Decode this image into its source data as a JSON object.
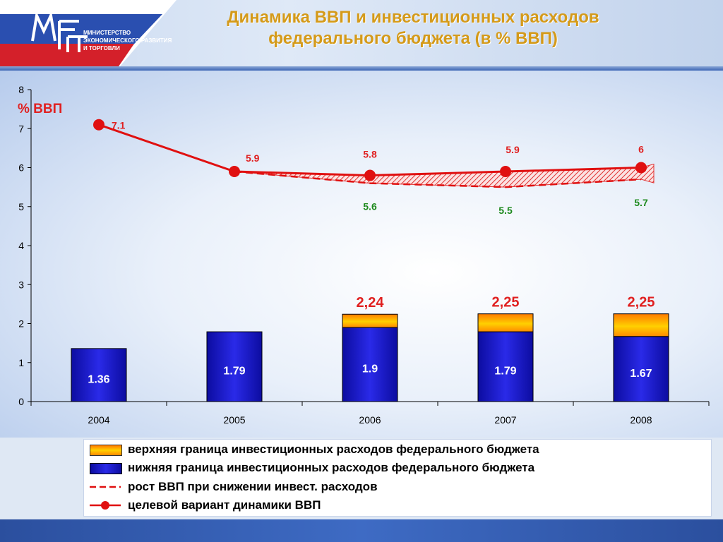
{
  "header": {
    "logo_lines": [
      "Министерство",
      "экономического развития",
      "и торговли"
    ],
    "title_line1": "Динамика ВВП и инвестиционных расходов",
    "title_line2": "федерального бюджета  (в % ВВП)"
  },
  "colors": {
    "title": "#d49a1a",
    "bar_blue": "#1a1ac8",
    "bar_orange": "#f5a000",
    "line_red": "#e01010",
    "band_fill": "#e84040",
    "label_red": "#e02020",
    "label_green": "#1e8a1e"
  },
  "chart_data": {
    "type": "bar",
    "ylabel": "% ВВП",
    "ylim": [
      0,
      8
    ],
    "yticks": [
      "0",
      "1",
      "2",
      "3",
      "4",
      "5",
      "6",
      "7",
      "8"
    ],
    "categories": [
      "2004",
      "2005",
      "2006",
      "2007",
      "2008"
    ],
    "series": [
      {
        "name": "нижняя граница  инвестиционных расходов  федерального бюджета",
        "kind": "bar",
        "values": [
          1.36,
          1.79,
          1.9,
          1.79,
          1.67
        ],
        "labels": [
          "1.36",
          "1.79",
          "1.9",
          "1.79",
          "1.67"
        ]
      },
      {
        "name": "верхняя граница инвестиционных расходов федерального бюджета",
        "kind": "bar-top",
        "values": [
          null,
          null,
          2.24,
          2.25,
          2.25
        ],
        "labels": [
          "",
          "",
          "2,24",
          "2,25",
          "2,25"
        ]
      },
      {
        "name": "целевой вариант динамики   ВВП",
        "kind": "line",
        "values": [
          7.1,
          5.9,
          5.8,
          5.9,
          6.0
        ],
        "labels": [
          "7.1",
          "5.9",
          "5.8",
          "5.9",
          "6"
        ]
      },
      {
        "name": "рост  ВВП при снижении инвест. расходов",
        "kind": "dashed-line",
        "values": [
          null,
          5.9,
          5.6,
          5.5,
          5.7
        ],
        "labels": [
          "",
          "",
          "5.6",
          "5.5",
          "5.7"
        ]
      }
    ]
  },
  "legend": {
    "items": [
      "верхняя граница инвестиционных расходов федерального бюджета",
      "нижняя граница  инвестиционных расходов  федерального бюджета",
      "рост  ВВП при снижении инвест. расходов",
      "целевой вариант динамики   ВВП"
    ]
  }
}
